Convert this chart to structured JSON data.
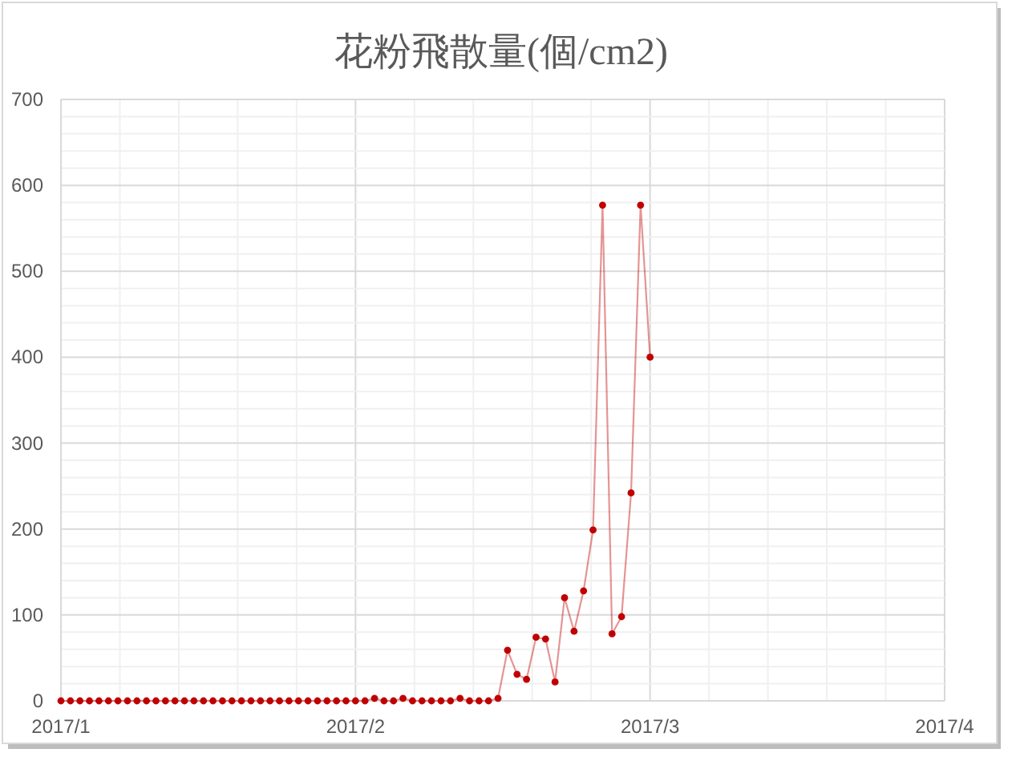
{
  "chart_data": {
    "type": "line",
    "title": "花粉飛散量(個/cm2)",
    "x": [
      "2017-01-01",
      "2017-01-02",
      "2017-01-03",
      "2017-01-04",
      "2017-01-05",
      "2017-01-06",
      "2017-01-07",
      "2017-01-08",
      "2017-01-09",
      "2017-01-10",
      "2017-01-11",
      "2017-01-12",
      "2017-01-13",
      "2017-01-14",
      "2017-01-15",
      "2017-01-16",
      "2017-01-17",
      "2017-01-18",
      "2017-01-19",
      "2017-01-20",
      "2017-01-21",
      "2017-01-22",
      "2017-01-23",
      "2017-01-24",
      "2017-01-25",
      "2017-01-26",
      "2017-01-27",
      "2017-01-28",
      "2017-01-29",
      "2017-01-30",
      "2017-01-31",
      "2017-02-01",
      "2017-02-02",
      "2017-02-03",
      "2017-02-04",
      "2017-02-05",
      "2017-02-06",
      "2017-02-07",
      "2017-02-08",
      "2017-02-09",
      "2017-02-10",
      "2017-02-11",
      "2017-02-12",
      "2017-02-13",
      "2017-02-14",
      "2017-02-15",
      "2017-02-16",
      "2017-02-17",
      "2017-02-18",
      "2017-02-19",
      "2017-02-20",
      "2017-02-21",
      "2017-02-22",
      "2017-02-23",
      "2017-02-24",
      "2017-02-25",
      "2017-02-26",
      "2017-02-27",
      "2017-02-28",
      "2017-03-01",
      "2017-03-02",
      "2017-03-03",
      "2017-03-04"
    ],
    "series": [
      {
        "color": "#c00000",
        "values": [
          0,
          0,
          0,
          0,
          0,
          0,
          0,
          0,
          0,
          0,
          0,
          0,
          0,
          0,
          0,
          0,
          0,
          0,
          0,
          0,
          0,
          0,
          0,
          0,
          0,
          0,
          0,
          0,
          0,
          0,
          0,
          0,
          0,
          3,
          0,
          0,
          3,
          0,
          0,
          0,
          0,
          0,
          3,
          0,
          0,
          0,
          3,
          59,
          31,
          25,
          74,
          72,
          22,
          120,
          81,
          128,
          199,
          577,
          78,
          98,
          242,
          577,
          400
        ]
      }
    ],
    "xlim": [
      "2017-01-01",
      "2017-04-04"
    ],
    "xticks": [
      {
        "value": "2017-01-01",
        "label": "2017/1"
      },
      {
        "value": "2017-02-01",
        "label": "2017/2"
      },
      {
        "value": "2017-03-04",
        "label": "2017/3"
      },
      {
        "value": "2017-04-04",
        "label": "2017/4"
      }
    ],
    "ylim": [
      0,
      700
    ],
    "yticks": [
      0,
      100,
      200,
      300,
      400,
      500,
      600,
      700
    ],
    "grid": true,
    "marker": "circle",
    "line_style": "solid"
  }
}
